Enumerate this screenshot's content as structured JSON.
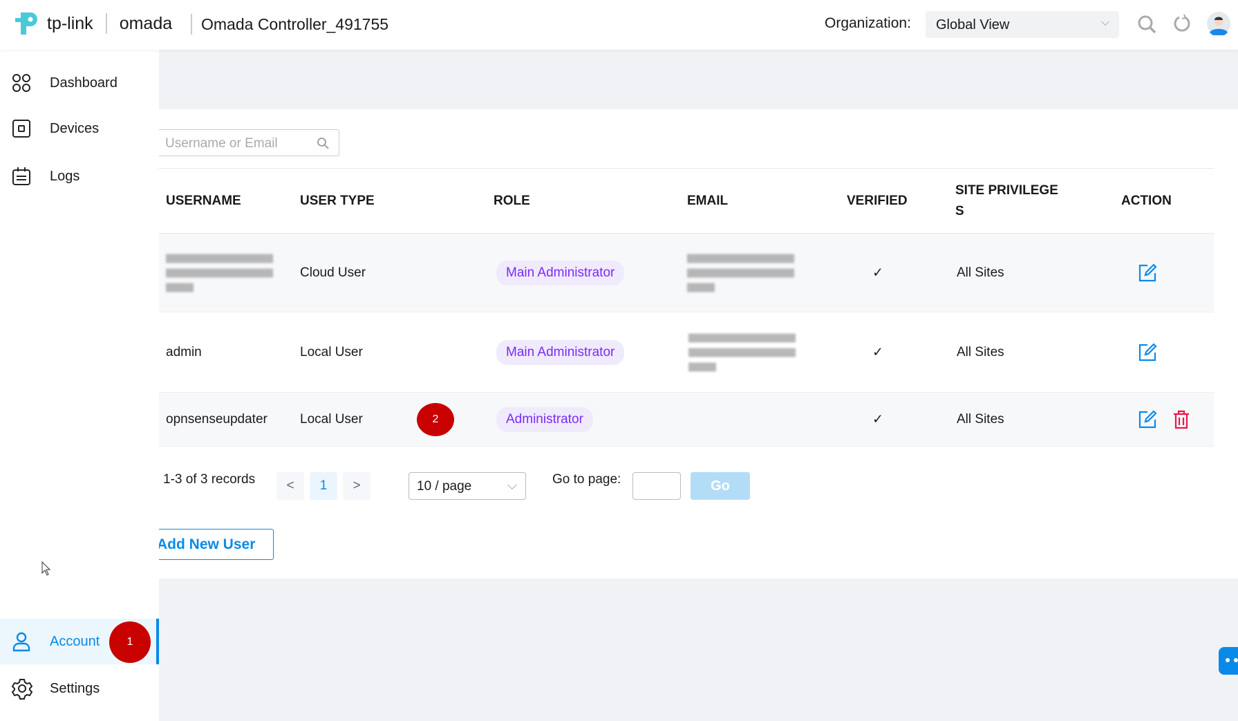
{
  "header": {
    "brand": "tp-link",
    "product": "omada",
    "title": "Omada Controller_491755",
    "org_label": "Organization:",
    "org_value": "Global View",
    "icons": [
      "search-icon",
      "refresh-icon",
      "avatar"
    ]
  },
  "sidebar": {
    "items": [
      {
        "label": "Dashboard",
        "icon": "dashboard-icon"
      },
      {
        "label": "Devices",
        "icon": "devices-icon"
      },
      {
        "label": "Logs",
        "icon": "logs-icon"
      },
      {
        "label": "Account",
        "icon": "user-icon",
        "active": true,
        "badge": "1"
      },
      {
        "label": "Settings",
        "icon": "gear-icon"
      }
    ]
  },
  "search": {
    "placeholder": "Username or Email"
  },
  "table": {
    "columns": [
      "USERNAME",
      "USER TYPE",
      "ROLE",
      "EMAIL",
      "VERIFIED",
      "SITE PRIVILEGE S",
      "ACTION"
    ],
    "rows": [
      {
        "username": "",
        "username_blurred": true,
        "user_type": "Cloud User",
        "role": "Main Administrator",
        "email_blurred": true,
        "verified": "✓",
        "sites": "All Sites",
        "actions": [
          "edit"
        ]
      },
      {
        "username": "admin",
        "user_type": "Local User",
        "role": "Main Administrator",
        "email_blurred": true,
        "verified": "✓",
        "sites": "All Sites",
        "actions": [
          "edit"
        ]
      },
      {
        "username": "opnsenseupdater",
        "user_type": "Local User",
        "role": "Administrator",
        "verified": "✓",
        "sites": "All Sites",
        "actions": [
          "edit",
          "delete"
        ],
        "badge": "2"
      }
    ]
  },
  "pagination": {
    "records": "1-3 of 3 records",
    "prev": "<",
    "page": "1",
    "next": ">",
    "page_size": "10 / page",
    "goto_label": "Go to page:",
    "goto_value": "",
    "go": "Go"
  },
  "add_button": "Add New User",
  "colors": {
    "accent": "#0a8ae8",
    "badge": "#c80000",
    "role_pill": "#7a2cf5",
    "delete": "#f0134d"
  }
}
